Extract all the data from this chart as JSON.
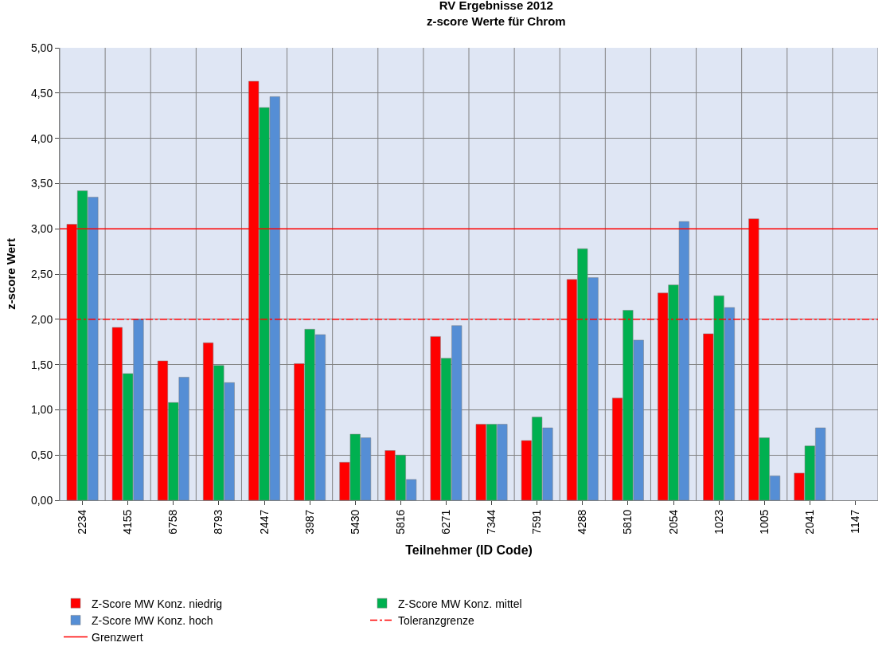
{
  "chart_data": {
    "type": "bar",
    "title": "RV Ergebnisse 2012",
    "subtitle": "z-score Werte für Chrom",
    "xlabel": "Teilnehmer (ID Code)",
    "ylabel": "z-score Wert",
    "categories": [
      "2234",
      "4155",
      "6758",
      "8793",
      "2447",
      "3987",
      "5430",
      "5816",
      "6271",
      "7344",
      "7591",
      "4288",
      "5810",
      "2054",
      "1023",
      "1005",
      "2041",
      "1147"
    ],
    "series": [
      {
        "name": "Z-Score MW Konz. niedrig",
        "color": "#ff0000",
        "values": [
          3.05,
          1.91,
          1.54,
          1.74,
          4.63,
          1.51,
          0.42,
          0.55,
          1.81,
          0.84,
          0.66,
          2.44,
          1.13,
          2.29,
          1.84,
          3.11,
          0.3,
          null
        ]
      },
      {
        "name": "Z-Score MW Konz. mittel",
        "color": "#00b050",
        "values": [
          3.42,
          1.4,
          1.08,
          1.49,
          4.34,
          1.89,
          0.73,
          0.5,
          1.57,
          0.84,
          0.92,
          2.78,
          2.1,
          2.38,
          2.26,
          0.69,
          0.6,
          null
        ]
      },
      {
        "name": "Z-Score MW Konz. hoch",
        "color": "#558ed5",
        "values": [
          3.35,
          2.0,
          1.36,
          1.3,
          4.46,
          1.83,
          0.69,
          0.23,
          1.93,
          0.84,
          0.8,
          2.46,
          1.77,
          3.08,
          2.13,
          0.27,
          0.8,
          null
        ]
      }
    ],
    "ref_lines": [
      {
        "axis": "y",
        "value": 2,
        "label": "Toleranzgrenze",
        "color": "#ff0000",
        "line_style": "dashed"
      },
      {
        "axis": "y",
        "value": 3,
        "label": "Grenzwert",
        "color": "#ff0000",
        "line_style": "solid"
      }
    ],
    "ylim": [
      0,
      5
    ],
    "yticks": [
      {
        "value": 0,
        "label": "0,00"
      },
      {
        "value": 0.5,
        "label": "0,50"
      },
      {
        "value": 1,
        "label": "1,00"
      },
      {
        "value": 1.5,
        "label": "1,50"
      },
      {
        "value": 2,
        "label": "2,00"
      },
      {
        "value": 2.5,
        "label": "2,50"
      },
      {
        "value": 3,
        "label": "3,00"
      },
      {
        "value": 3.5,
        "label": "3,50"
      },
      {
        "value": 4,
        "label": "4,00"
      },
      {
        "value": 4.5,
        "label": "4,50"
      },
      {
        "value": 5,
        "label": "5,00"
      }
    ],
    "grid": true,
    "legend": "bottom"
  }
}
